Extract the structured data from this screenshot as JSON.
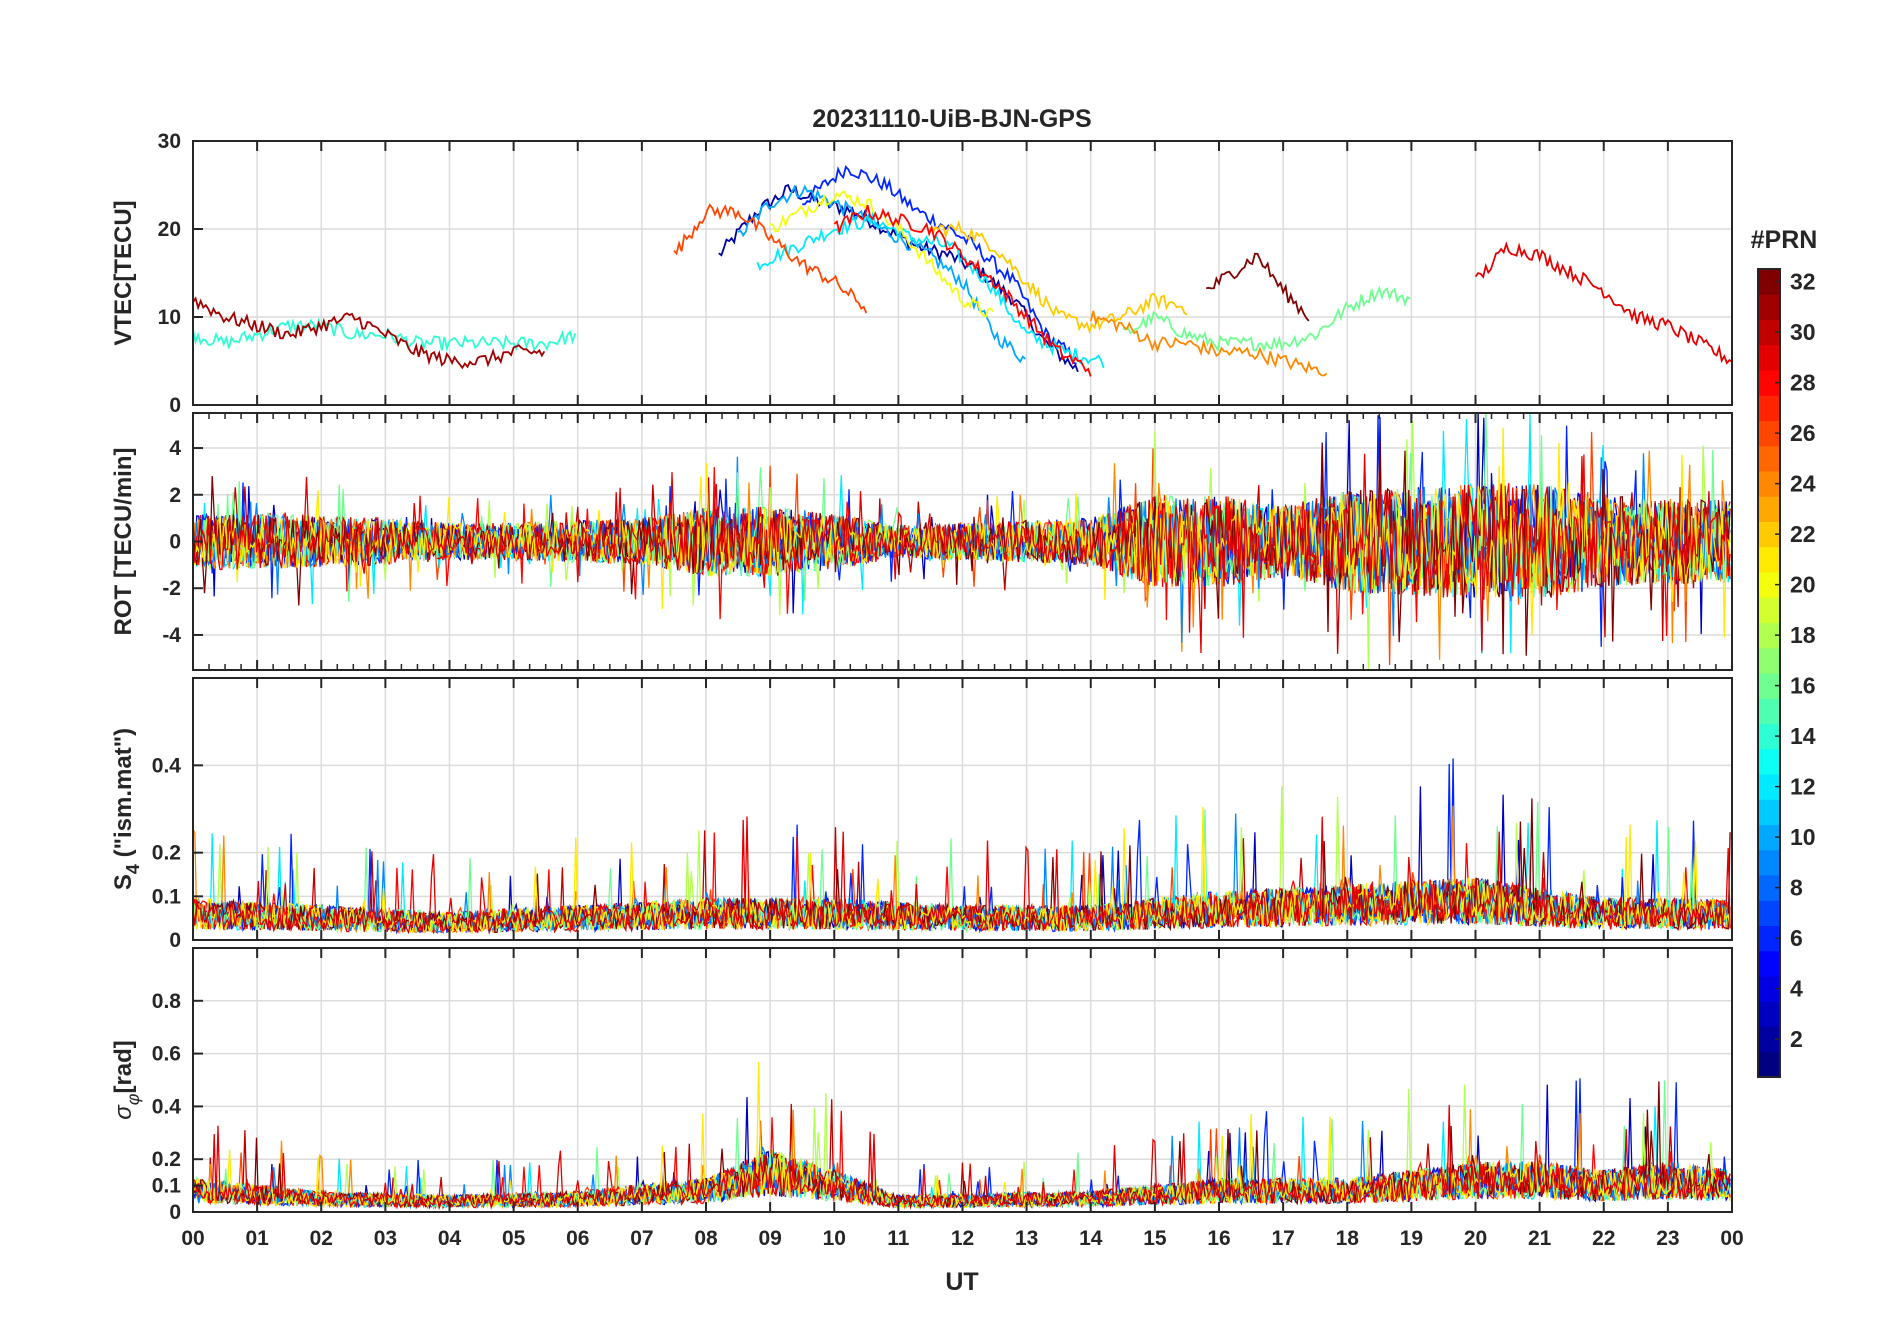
{
  "chart_data": {
    "type": "line",
    "title": "20231110-UiB-BJN-GPS",
    "xlabel": "UT",
    "x_ticks": [
      "00",
      "01",
      "02",
      "03",
      "04",
      "05",
      "06",
      "07",
      "08",
      "09",
      "10",
      "11",
      "12",
      "13",
      "14",
      "15",
      "16",
      "17",
      "18",
      "19",
      "20",
      "21",
      "22",
      "23",
      "00"
    ],
    "xlim": [
      0,
      24
    ],
    "colorbar": {
      "label": "#PRN",
      "range": [
        1,
        32
      ],
      "ticks": [
        "2",
        "4",
        "6",
        "8",
        "10",
        "12",
        "14",
        "16",
        "18",
        "20",
        "22",
        "24",
        "26",
        "28",
        "30",
        "32"
      ],
      "tick_values": [
        2,
        4,
        6,
        8,
        10,
        12,
        14,
        16,
        18,
        20,
        22,
        24,
        26,
        28,
        30,
        32
      ],
      "colormap": "jet"
    },
    "panels": [
      {
        "id": "vtec",
        "ylabel": "VTEC[TECU]",
        "ylim": [
          0,
          30
        ],
        "y_ticks": [
          "0",
          "10",
          "20",
          "30"
        ],
        "y_tick_values": [
          0,
          10,
          20,
          30
        ],
        "series": [
          {
            "prn": 2,
            "points": [
              [
                8.2,
                17
              ],
              [
                8.8,
                22
              ],
              [
                9.3,
                24.5
              ],
              [
                9.8,
                23
              ],
              [
                10.3,
                22
              ],
              [
                10.8,
                20
              ],
              [
                11.3,
                18
              ],
              [
                11.8,
                17
              ],
              [
                12.3,
                15
              ],
              [
                12.8,
                12
              ],
              [
                13.3,
                7
              ],
              [
                13.8,
                4
              ]
            ]
          },
          {
            "prn": 6,
            "points": [
              [
                9.5,
                23
              ],
              [
                10.2,
                27
              ],
              [
                10.8,
                25
              ],
              [
                11.3,
                22
              ],
              [
                11.8,
                20
              ],
              [
                12.2,
                18
              ],
              [
                12.8,
                14
              ],
              [
                13.3,
                8
              ],
              [
                13.8,
                5
              ]
            ]
          },
          {
            "prn": 10,
            "points": [
              [
                8.5,
                19
              ],
              [
                9.0,
                23
              ],
              [
                9.5,
                24.5
              ],
              [
                10.0,
                23
              ],
              [
                10.5,
                21
              ],
              [
                11.0,
                19
              ],
              [
                11.5,
                17
              ],
              [
                12.0,
                14
              ],
              [
                12.5,
                8
              ],
              [
                13.0,
                5
              ]
            ]
          },
          {
            "prn": 12,
            "points": [
              [
                8.8,
                16
              ],
              [
                9.4,
                18
              ],
              [
                10.0,
                20
              ],
              [
                10.6,
                21
              ],
              [
                11.2,
                19
              ],
              [
                11.8,
                18
              ],
              [
                12.4,
                14
              ],
              [
                13.0,
                8
              ],
              [
                13.6,
                6
              ],
              [
                14.2,
                5
              ]
            ]
          },
          {
            "prn": 14,
            "points": [
              [
                0,
                8
              ],
              [
                0.5,
                7
              ],
              [
                1.0,
                8
              ],
              [
                1.5,
                9
              ],
              [
                2.0,
                9
              ],
              [
                2.5,
                8
              ],
              [
                3.0,
                8
              ],
              [
                3.5,
                7
              ],
              [
                4.0,
                7
              ],
              [
                4.5,
                7
              ],
              [
                5.0,
                7
              ],
              [
                5.5,
                7
              ],
              [
                6.0,
                8
              ]
            ]
          },
          {
            "prn": 16,
            "points": [
              [
                14.5,
                8
              ],
              [
                15.0,
                10
              ],
              [
                15.5,
                8
              ],
              [
                16.0,
                7
              ],
              [
                16.5,
                7
              ],
              [
                17.0,
                7
              ],
              [
                17.5,
                8
              ],
              [
                18.0,
                11
              ],
              [
                18.5,
                13
              ],
              [
                19.0,
                12
              ]
            ]
          },
          {
            "prn": 20,
            "points": [
              [
                9.0,
                20
              ],
              [
                9.5,
                22
              ],
              [
                10.0,
                24
              ],
              [
                10.5,
                23
              ],
              [
                11.0,
                20
              ],
              [
                11.5,
                16
              ],
              [
                12.0,
                12
              ],
              [
                12.5,
                10
              ]
            ]
          },
          {
            "prn": 22,
            "points": [
              [
                11.5,
                20
              ],
              [
                12.0,
                20
              ],
              [
                12.5,
                18
              ],
              [
                13.0,
                14
              ],
              [
                13.5,
                10
              ],
              [
                14.0,
                9
              ],
              [
                14.5,
                10
              ],
              [
                15.0,
                12
              ],
              [
                15.5,
                11
              ]
            ]
          },
          {
            "prn": 24,
            "points": [
              [
                14.0,
                10
              ],
              [
                14.5,
                9
              ],
              [
                15.0,
                7
              ],
              [
                15.5,
                7
              ],
              [
                16.0,
                6
              ],
              [
                16.5,
                6
              ],
              [
                17.0,
                5
              ],
              [
                17.5,
                4
              ],
              [
                17.7,
                4
              ]
            ]
          },
          {
            "prn": 26,
            "points": [
              [
                7.5,
                17
              ],
              [
                8.0,
                22
              ],
              [
                8.5,
                22
              ],
              [
                9.0,
                19
              ],
              [
                9.5,
                16
              ],
              [
                10.0,
                14
              ],
              [
                10.5,
                11
              ]
            ]
          },
          {
            "prn": 28,
            "points": [
              [
                10.0,
                20
              ],
              [
                10.5,
                22
              ],
              [
                11.0,
                21
              ],
              [
                11.5,
                20
              ],
              [
                12.0,
                17
              ],
              [
                12.5,
                14
              ],
              [
                13.0,
                10
              ],
              [
                13.5,
                6
              ],
              [
                14.0,
                4
              ]
            ]
          },
          {
            "prn": 29,
            "points": [
              [
                20.0,
                14
              ],
              [
                20.5,
                18
              ],
              [
                21.0,
                17
              ],
              [
                21.5,
                15
              ],
              [
                22.0,
                13
              ],
              [
                22.5,
                10
              ],
              [
                23.0,
                9
              ],
              [
                23.5,
                7
              ],
              [
                24.0,
                5
              ]
            ]
          },
          {
            "prn": 31,
            "points": [
              [
                0,
                12
              ],
              [
                0.5,
                10
              ],
              [
                1.0,
                9
              ],
              [
                1.5,
                8
              ],
              [
                2.0,
                9
              ],
              [
                2.5,
                10
              ],
              [
                3.0,
                8
              ],
              [
                3.5,
                6
              ],
              [
                4.0,
                5
              ],
              [
                4.5,
                5
              ],
              [
                5.0,
                6
              ],
              [
                5.5,
                6
              ]
            ]
          },
          {
            "prn": 32,
            "points": [
              [
                15.8,
                13
              ],
              [
                16.2,
                15
              ],
              [
                16.6,
                17
              ],
              [
                17.0,
                13
              ],
              [
                17.4,
                10
              ]
            ]
          }
        ]
      },
      {
        "id": "rot",
        "ylabel": "ROT [TECU/min]",
        "ylim": [
          -5.5,
          5.5
        ],
        "y_ticks": [
          "-4",
          "-2",
          "0",
          "2",
          "4"
        ],
        "y_tick_values": [
          -4,
          -2,
          0,
          2,
          4
        ],
        "band_amplitude": [
          [
            0,
            1.2
          ],
          [
            1,
            1.2
          ],
          [
            2,
            1.1
          ],
          [
            3,
            1.0
          ],
          [
            4,
            0.8
          ],
          [
            5,
            0.8
          ],
          [
            6,
            0.9
          ],
          [
            7,
            1.0
          ],
          [
            8,
            1.5
          ],
          [
            9,
            1.5
          ],
          [
            10,
            1.2
          ],
          [
            11,
            0.7
          ],
          [
            12,
            0.8
          ],
          [
            13,
            0.9
          ],
          [
            14,
            1.0
          ],
          [
            15,
            2.0
          ],
          [
            16,
            2.0
          ],
          [
            17,
            1.5
          ],
          [
            18,
            2.2
          ],
          [
            19,
            2.3
          ],
          [
            20,
            2.5
          ],
          [
            21,
            2.5
          ],
          [
            22,
            2.0
          ],
          [
            23,
            1.8
          ],
          [
            24,
            1.8
          ]
        ]
      },
      {
        "id": "s4",
        "ylabel": "S4 (\"ism.mat\")",
        "ylim": [
          0,
          0.6
        ],
        "y_ticks": [
          "0",
          "0.1",
          "0.2",
          "0.4"
        ],
        "y_tick_values": [
          0,
          0.1,
          0.2,
          0.4
        ],
        "band_level": [
          [
            0,
            0.06
          ],
          [
            2,
            0.05
          ],
          [
            4,
            0.04
          ],
          [
            6,
            0.05
          ],
          [
            8,
            0.06
          ],
          [
            10,
            0.06
          ],
          [
            12,
            0.05
          ],
          [
            14,
            0.05
          ],
          [
            16,
            0.07
          ],
          [
            18,
            0.08
          ],
          [
            20,
            0.09
          ],
          [
            22,
            0.06
          ],
          [
            24,
            0.06
          ]
        ]
      },
      {
        "id": "sigma_phi",
        "ylabel": "σφ[rad]",
        "ylim": [
          0,
          1.0
        ],
        "y_ticks": [
          "0",
          "0.1",
          "0.2",
          "0.4",
          "0.6",
          "0.8"
        ],
        "y_tick_values": [
          0,
          0.1,
          0.2,
          0.4,
          0.6,
          0.8
        ],
        "band_level": [
          [
            0,
            0.08
          ],
          [
            2,
            0.05
          ],
          [
            4,
            0.04
          ],
          [
            6,
            0.05
          ],
          [
            8,
            0.08
          ],
          [
            9,
            0.15
          ],
          [
            10,
            0.1
          ],
          [
            11,
            0.04
          ],
          [
            14,
            0.05
          ],
          [
            16,
            0.08
          ],
          [
            18,
            0.08
          ],
          [
            20,
            0.12
          ],
          [
            21,
            0.12
          ],
          [
            22,
            0.1
          ],
          [
            23,
            0.12
          ],
          [
            24,
            0.1
          ]
        ]
      }
    ]
  }
}
